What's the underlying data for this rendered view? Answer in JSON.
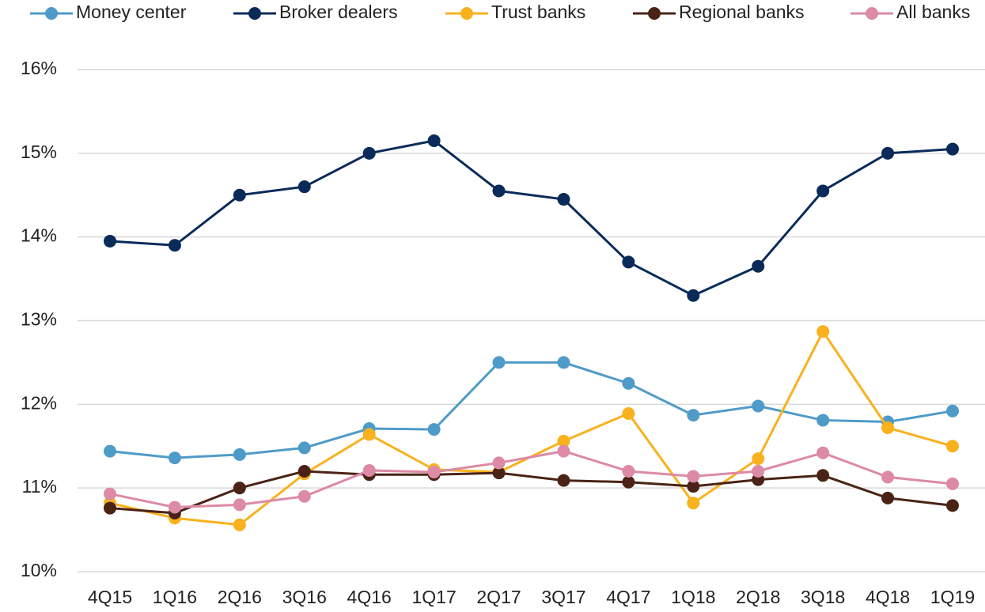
{
  "chart_data": {
    "type": "line",
    "categories": [
      "4Q15",
      "1Q16",
      "2Q16",
      "3Q16",
      "4Q16",
      "1Q17",
      "2Q17",
      "3Q17",
      "4Q17",
      "1Q18",
      "2Q18",
      "3Q18",
      "4Q18",
      "1Q19"
    ],
    "series": [
      {
        "name": "Money center",
        "color": "#4f9bc8",
        "values": [
          11.44,
          11.36,
          11.4,
          11.48,
          11.71,
          11.7,
          12.5,
          12.5,
          12.25,
          11.87,
          11.98,
          11.81,
          11.79,
          11.92
        ]
      },
      {
        "name": "Broker dealers",
        "color": "#0a2b5a",
        "values": [
          13.95,
          13.9,
          14.5,
          14.6,
          15.0,
          15.15,
          14.55,
          14.45,
          13.7,
          13.3,
          13.65,
          14.55,
          15.0,
          15.05
        ]
      },
      {
        "name": "Trust banks",
        "color": "#f9b11e",
        "values": [
          10.82,
          10.64,
          10.56,
          11.17,
          11.64,
          11.22,
          11.19,
          11.56,
          11.89,
          10.82,
          11.35,
          12.87,
          11.72,
          11.5
        ]
      },
      {
        "name": "Regional banks",
        "color": "#4a2316",
        "values": [
          10.76,
          10.7,
          11.0,
          11.2,
          11.16,
          11.16,
          11.18,
          11.09,
          11.07,
          11.02,
          11.1,
          11.15,
          10.88,
          10.79
        ]
      },
      {
        "name": "All banks",
        "color": "#dc8aa6",
        "values": [
          10.93,
          10.77,
          10.8,
          10.9,
          11.21,
          11.19,
          11.3,
          11.44,
          11.2,
          11.14,
          11.2,
          11.42,
          11.13,
          11.05
        ]
      }
    ],
    "ylim": [
      10,
      16
    ],
    "yticks": [
      {
        "value": 10,
        "label": "10%"
      },
      {
        "value": 11,
        "label": "11%"
      },
      {
        "value": 12,
        "label": "12%"
      },
      {
        "value": 13,
        "label": "13%"
      },
      {
        "value": 14,
        "label": "14%"
      },
      {
        "value": 15,
        "label": "15%"
      },
      {
        "value": 16,
        "label": "16%"
      }
    ],
    "grid": true,
    "legend": "top"
  }
}
